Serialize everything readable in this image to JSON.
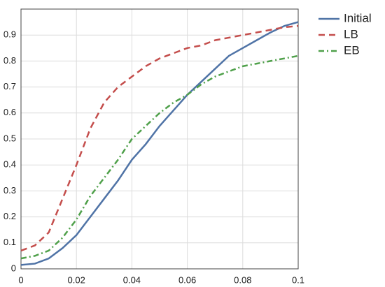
{
  "chart_data": {
    "type": "line",
    "x": [
      0,
      0.005,
      0.01,
      0.015,
      0.02,
      0.025,
      0.03,
      0.035,
      0.04,
      0.045,
      0.05,
      0.055,
      0.06,
      0.065,
      0.07,
      0.075,
      0.08,
      0.085,
      0.09,
      0.095,
      0.1
    ],
    "series": [
      {
        "name": "Initial",
        "color": "#4f73a6",
        "dash": "solid",
        "values": [
          0.015,
          0.02,
          0.04,
          0.08,
          0.13,
          0.2,
          0.27,
          0.34,
          0.42,
          0.48,
          0.55,
          0.61,
          0.67,
          0.72,
          0.77,
          0.82,
          0.85,
          0.88,
          0.91,
          0.935,
          0.95
        ]
      },
      {
        "name": "LB",
        "color": "#c44e4c",
        "dash": "dashed",
        "values": [
          0.07,
          0.09,
          0.14,
          0.27,
          0.4,
          0.54,
          0.64,
          0.7,
          0.74,
          0.78,
          0.81,
          0.83,
          0.85,
          0.86,
          0.88,
          0.89,
          0.9,
          0.91,
          0.92,
          0.93,
          0.935
        ]
      },
      {
        "name": "EB",
        "color": "#4fa04a",
        "dash": "dashdot",
        "values": [
          0.04,
          0.05,
          0.07,
          0.12,
          0.19,
          0.28,
          0.35,
          0.42,
          0.5,
          0.55,
          0.6,
          0.64,
          0.67,
          0.71,
          0.74,
          0.76,
          0.78,
          0.79,
          0.8,
          0.81,
          0.82
        ]
      }
    ],
    "xlim": [
      0,
      0.1
    ],
    "xticks": [
      0,
      0.02,
      0.04,
      0.06,
      0.08,
      0.1
    ],
    "ylim": [
      0,
      1
    ],
    "yticks": [
      0,
      0.1,
      0.2,
      0.3,
      0.4,
      0.5,
      0.6,
      0.7,
      0.8,
      0.9
    ],
    "grid": true,
    "legend": "outside-right"
  }
}
